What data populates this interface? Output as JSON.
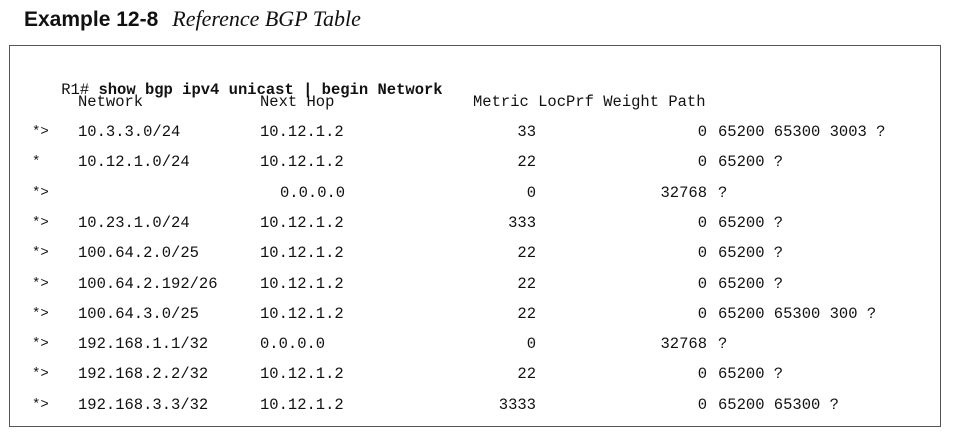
{
  "example": {
    "label": "Example 12-8",
    "caption": "Reference BGP Table"
  },
  "command": {
    "prompt": "R1#",
    "text": "show bgp ipv4 unicast | begin Network"
  },
  "headers": {
    "network": "Network",
    "next_hop": "Next Hop",
    "metric_locprf_weight_path": "Metric LocPrf Weight Path"
  },
  "rows": [
    {
      "status": "*>",
      "network": "10.3.3.0/24",
      "next_hop": "10.12.1.2",
      "metric": "33",
      "weight": "0",
      "path": "65200 65300 3003 ?"
    },
    {
      "status": "*",
      "network": "10.12.1.0/24",
      "next_hop": "10.12.1.2",
      "metric": "22",
      "weight": "0",
      "path": "65200 ?"
    },
    {
      "status": "*>",
      "network": "",
      "next_hop": "0.0.0.0",
      "metric": "0",
      "weight": "32768",
      "path": "?"
    },
    {
      "status": "*>",
      "network": "10.23.1.0/24",
      "next_hop": "10.12.1.2",
      "metric": "333",
      "weight": "0",
      "path": "65200 ?"
    },
    {
      "status": "*>",
      "network": "100.64.2.0/25",
      "next_hop": "10.12.1.2",
      "metric": "22",
      "weight": "0",
      "path": "65200 ?"
    },
    {
      "status": "*>",
      "network": "100.64.2.192/26",
      "next_hop": "10.12.1.2",
      "metric": "22",
      "weight": "0",
      "path": "65200 ?"
    },
    {
      "status": "*>",
      "network": "100.64.3.0/25",
      "next_hop": "10.12.1.2",
      "metric": "22",
      "weight": "0",
      "path": "65200 65300 300 ?"
    },
    {
      "status": "*>",
      "network": "192.168.1.1/32",
      "next_hop": "0.0.0.0",
      "metric": "0",
      "weight": "32768",
      "path": "?"
    },
    {
      "status": "*>",
      "network": "192.168.2.2/32",
      "next_hop": "10.12.1.2",
      "metric": "22",
      "weight": "0",
      "path": "65200 ?"
    },
    {
      "status": "*>",
      "network": "192.168.3.3/32",
      "next_hop": "10.12.1.2",
      "metric": "3333",
      "weight": "0",
      "path": "65200 65300 ?"
    }
  ]
}
